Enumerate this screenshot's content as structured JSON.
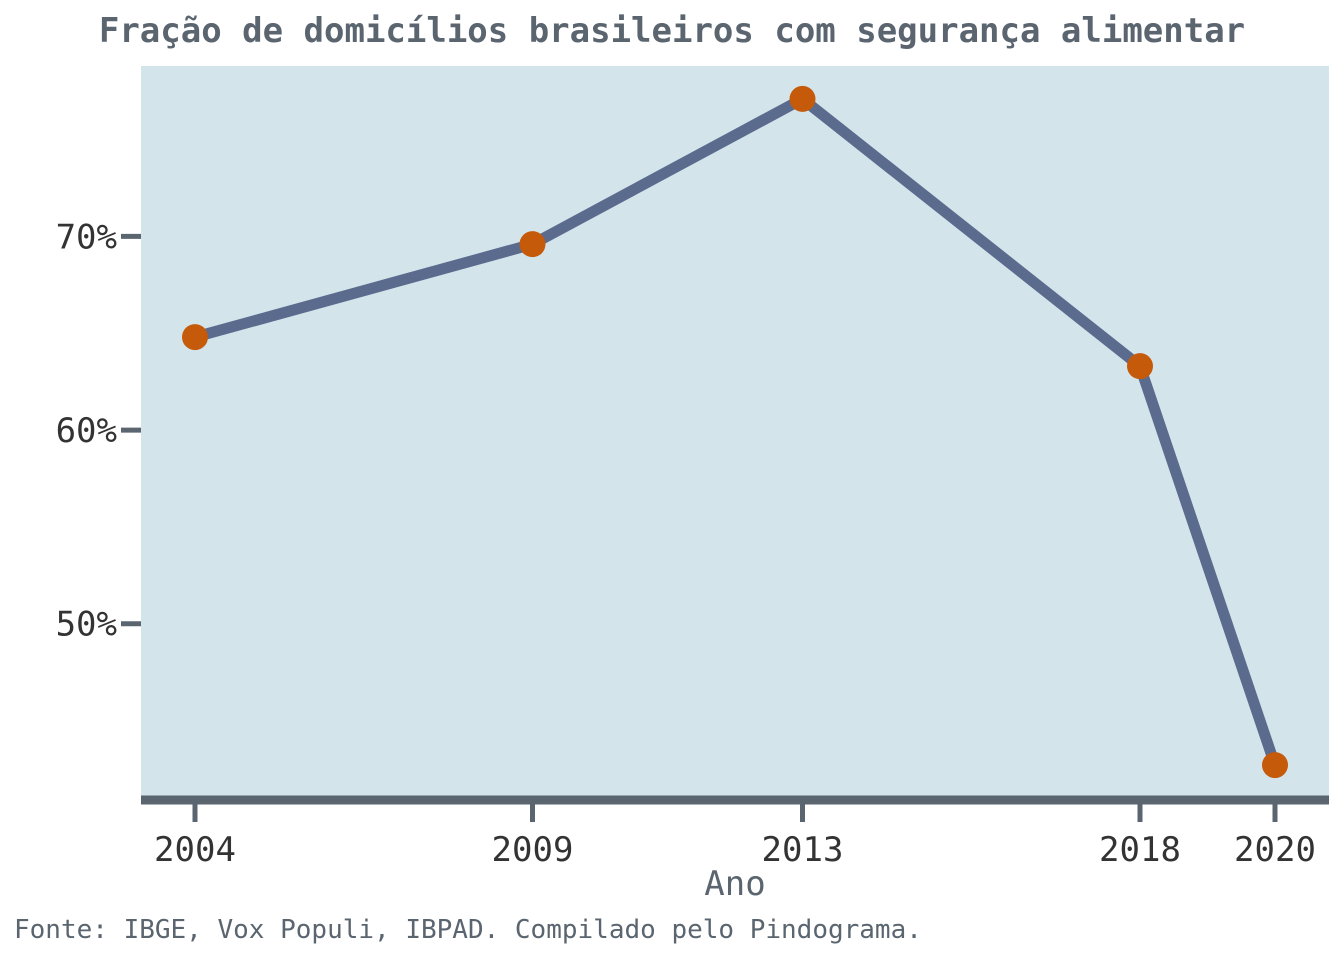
{
  "chart_data": {
    "type": "line",
    "title": "Fração de domicílios brasileiros com segurança alimentar",
    "xlabel": "Ano",
    "ylabel": "",
    "source": "Fonte: IBGE, Vox Populi, IBPAD. Compilado pelo Pindograma.",
    "x": [
      2004,
      2009,
      2013,
      2018,
      2020
    ],
    "x_tick_labels": [
      "2004",
      "2009",
      "2013",
      "2018",
      "2020"
    ],
    "values": [
      64.8,
      69.6,
      77.1,
      63.3,
      42.7
    ],
    "y_ticks": [
      50,
      60,
      70
    ],
    "y_tick_labels": [
      "50%",
      "60%",
      "70%"
    ],
    "xlim": [
      2003.2,
      2020.8
    ],
    "ylim": [
      41.0,
      78.8
    ],
    "grid": false,
    "legend": "none",
    "colors": {
      "background": "#d4e4eb",
      "line": "#5b6b8e",
      "marker": "#c45a0a",
      "axis": "#5a6570"
    }
  }
}
